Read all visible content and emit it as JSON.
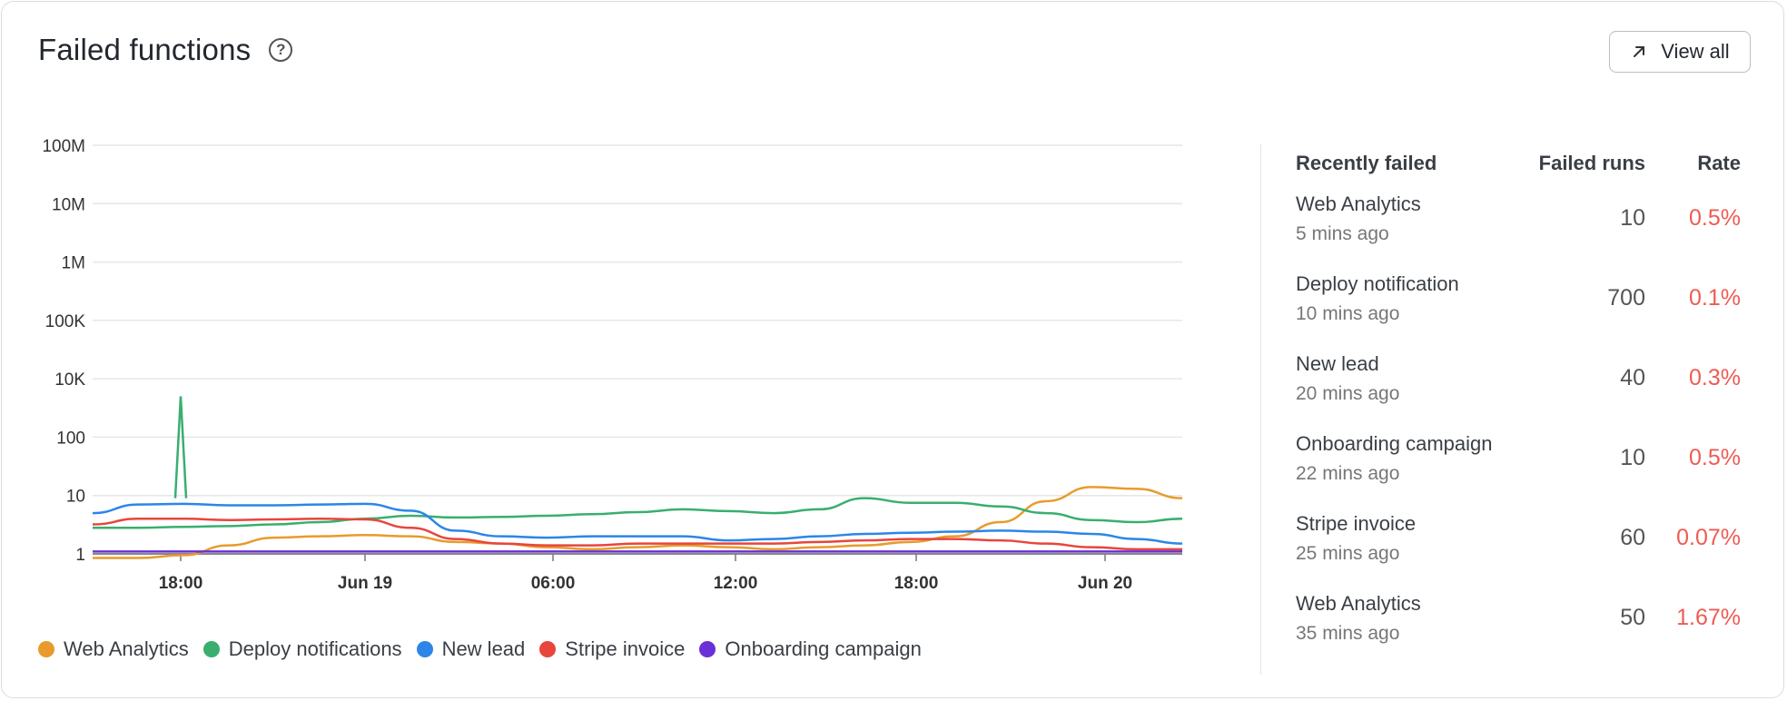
{
  "header": {
    "title": "Failed functions",
    "help_icon": "question-circle-icon"
  },
  "view_all": {
    "label": "View all",
    "icon": "arrow-up-right-icon"
  },
  "colors": {
    "web_analytics": "#e89b2c",
    "deploy_notifications": "#3aae6f",
    "new_lead": "#2b86e8",
    "stripe_invoice": "#e8453c",
    "onboarding_campaign": "#6a2fd6"
  },
  "chart_data": {
    "type": "line",
    "y_scale": "log",
    "y_ticks": [
      "1",
      "10",
      "100",
      "10K",
      "100K",
      "1M",
      "10M",
      "100M"
    ],
    "x_ticks": [
      "18:00",
      "Jun 19",
      "06:00",
      "12:00",
      "18:00",
      "Jun 20"
    ],
    "legend_position": "bottom-left",
    "series": [
      {
        "name": "Web Analytics",
        "color": "#e89b2c",
        "values": [
          0.85,
          0.85,
          0.95,
          1.4,
          1.9,
          2.0,
          2.1,
          2.0,
          1.6,
          1.5,
          1.3,
          1.2,
          1.3,
          1.4,
          1.3,
          1.2,
          1.3,
          1.4,
          1.6,
          2.0,
          3.5,
          8.0,
          14,
          13,
          9.0
        ]
      },
      {
        "name": "Deploy notifications",
        "color": "#3aae6f",
        "values": [
          2.8,
          2.8,
          2.9,
          3.0,
          3.2,
          3.5,
          4.0,
          4.5,
          4.2,
          4.3,
          4.5,
          4.8,
          5.2,
          5.8,
          5.4,
          5.0,
          5.8,
          9.0,
          7.5,
          7.5,
          6.5,
          5.0,
          3.8,
          3.5,
          4.0
        ]
      },
      {
        "name": "New lead",
        "color": "#2b86e8",
        "values": [
          5.0,
          7.0,
          7.2,
          6.8,
          6.8,
          7.0,
          7.2,
          5.5,
          2.5,
          2.0,
          1.9,
          2.0,
          2.0,
          2.0,
          1.7,
          1.8,
          2.0,
          2.2,
          2.3,
          2.4,
          2.5,
          2.4,
          2.2,
          1.8,
          1.5
        ]
      },
      {
        "name": "Stripe invoice",
        "color": "#e8453c",
        "values": [
          3.2,
          4.0,
          4.0,
          3.8,
          3.9,
          4.0,
          3.9,
          2.8,
          1.8,
          1.5,
          1.4,
          1.4,
          1.5,
          1.5,
          1.5,
          1.5,
          1.6,
          1.7,
          1.8,
          1.8,
          1.7,
          1.5,
          1.3,
          1.2,
          1.2
        ]
      },
      {
        "name": "Onboarding campaign",
        "color": "#6a2fd6",
        "values": [
          1.1,
          1.1,
          1.1,
          1.1,
          1.1,
          1.1,
          1.1,
          1.1,
          1.1,
          1.1,
          1.1,
          1.1,
          1.1,
          1.1,
          1.1,
          1.1,
          1.1,
          1.1,
          1.1,
          1.1,
          1.1,
          1.1,
          1.1,
          1.1,
          1.1
        ]
      }
    ],
    "annotations": [
      {
        "series": "Deploy notifications",
        "at": "18:00",
        "peak": 2500
      }
    ]
  },
  "legend": [
    {
      "label": "Web Analytics",
      "color": "#e89b2c"
    },
    {
      "label": "Deploy notifications",
      "color": "#3aae6f"
    },
    {
      "label": "New lead",
      "color": "#2b86e8"
    },
    {
      "label": "Stripe invoice",
      "color": "#e8453c"
    },
    {
      "label": "Onboarding campaign",
      "color": "#6a2fd6"
    }
  ],
  "recently_failed": {
    "headers": {
      "name": "Recently failed",
      "runs": "Failed runs",
      "rate": "Rate"
    },
    "rows": [
      {
        "name": "Web Analytics",
        "ago": "5 mins ago",
        "runs": "10",
        "rate": "0.5%"
      },
      {
        "name": "Deploy notification",
        "ago": "10 mins ago",
        "runs": "700",
        "rate": "0.1%"
      },
      {
        "name": "New lead",
        "ago": "20 mins ago",
        "runs": "40",
        "rate": "0.3%"
      },
      {
        "name": "Onboarding campaign",
        "ago": "22 mins ago",
        "runs": "10",
        "rate": "0.5%"
      },
      {
        "name": "Stripe invoice",
        "ago": "25 mins ago",
        "runs": "60",
        "rate": "0.07%"
      },
      {
        "name": "Web Analytics",
        "ago": "35 mins ago",
        "runs": "50",
        "rate": "1.67%"
      }
    ]
  }
}
